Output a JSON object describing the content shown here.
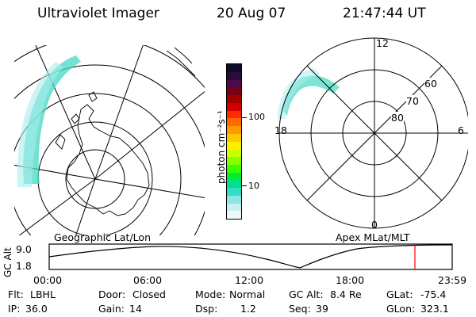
{
  "header": {
    "title": "Ultraviolet Imager",
    "date": "20 Aug 07",
    "time": "21:47:44 UT"
  },
  "left_panel": {
    "caption": "Geographic Lat/Lon"
  },
  "right_panel": {
    "caption": "Apex MLat/MLT",
    "mlt_labels": {
      "top": "12",
      "bottom": "0",
      "left": "18",
      "right": "6"
    },
    "lat_labels": [
      "60",
      "70",
      "80"
    ]
  },
  "colorbar": {
    "unit_label": "photon cm⁻²s⁻¹",
    "ticks": [
      "100",
      "10"
    ],
    "colors": [
      "#0b0b2a",
      "#2b0a3d",
      "#4b0a4a",
      "#7a0018",
      "#a10000",
      "#d00000",
      "#ff2a00",
      "#ff6a00",
      "#ff9a00",
      "#ffc800",
      "#ffee00",
      "#ccff00",
      "#88ff00",
      "#3aff00",
      "#00ee30",
      "#00e090",
      "#33dcc8",
      "#88e6e6",
      "#c8f0f0",
      "#eef8f8"
    ]
  },
  "altitude_plot": {
    "y_axis_label": "GC Alt",
    "y_ticks": [
      "9.0",
      "1.8"
    ],
    "x_ticks": [
      "00:00",
      "06:00",
      "12:00",
      "18:00",
      "23:59"
    ],
    "marker_color": "#ff0000"
  },
  "info": {
    "flt_label": "Flt:",
    "flt_value": "LBHL",
    "door_label": "Door:",
    "door_value": "Closed",
    "mode_label": "Mode:",
    "mode_value": "Normal",
    "gcalt_label": "GC Alt:",
    "gcalt_value": "8.4 Re",
    "glat_label": "GLat:",
    "glat_value": "-75.4",
    "ip_label": "IP:",
    "ip_value": "36.0",
    "gain_label": "Gain:",
    "gain_value": "14",
    "dsp_label": "Dsp:",
    "dsp_value": "1.2",
    "seq_label": "Seq:",
    "seq_value": "39",
    "glon_label": "GLon:",
    "glon_value": "323.1"
  }
}
